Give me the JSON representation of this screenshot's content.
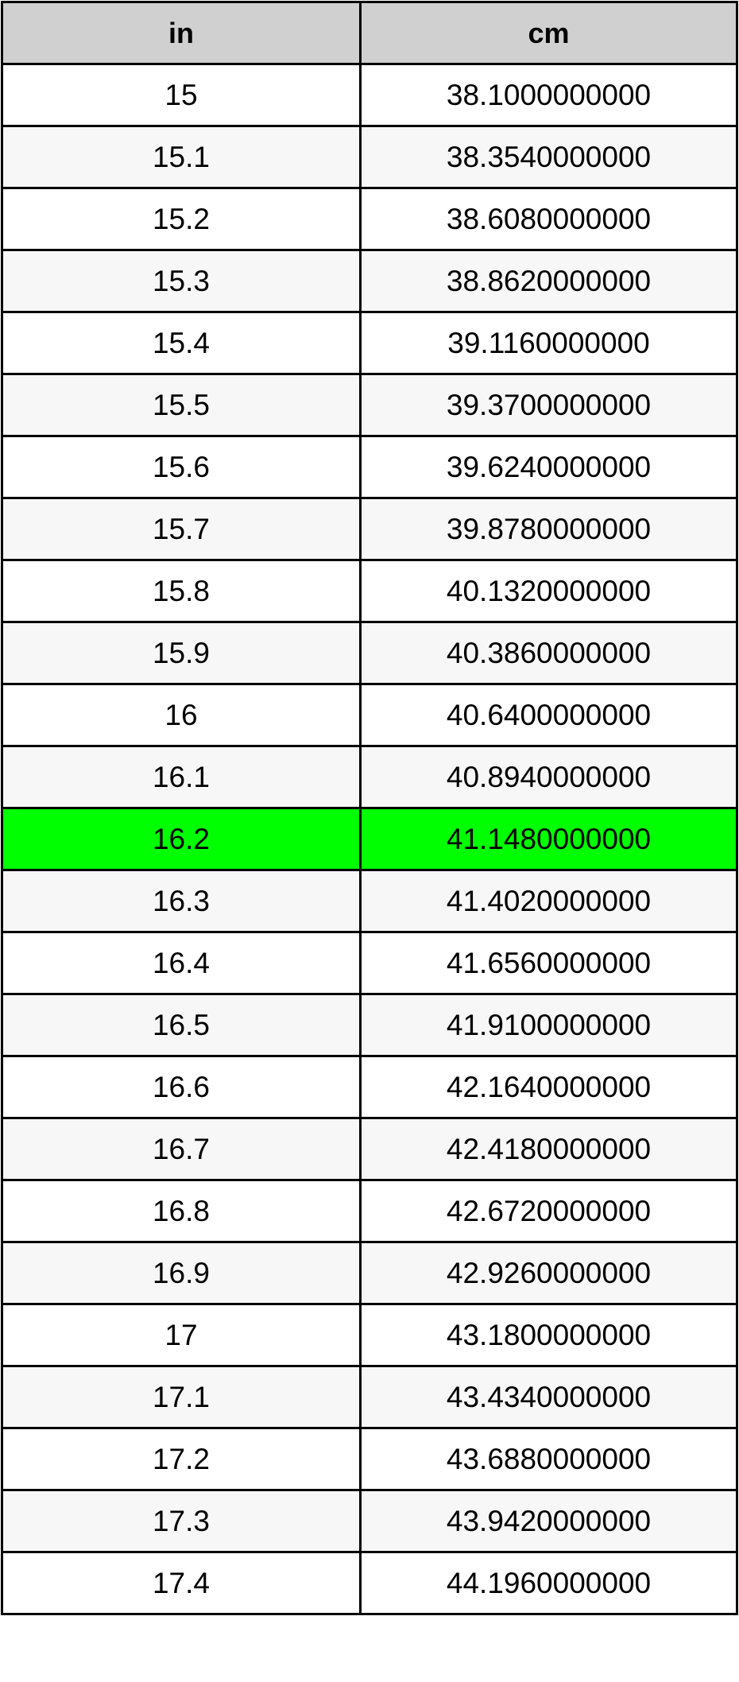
{
  "table": {
    "headers": [
      "in",
      "cm"
    ],
    "highlight_color": "#00ff00",
    "highlighted_row": "16.2",
    "rows": [
      [
        "15",
        "38.1000000000"
      ],
      [
        "15.1",
        "38.3540000000"
      ],
      [
        "15.2",
        "38.6080000000"
      ],
      [
        "15.3",
        "38.8620000000"
      ],
      [
        "15.4",
        "39.1160000000"
      ],
      [
        "15.5",
        "39.3700000000"
      ],
      [
        "15.6",
        "39.6240000000"
      ],
      [
        "15.7",
        "39.8780000000"
      ],
      [
        "15.8",
        "40.1320000000"
      ],
      [
        "15.9",
        "40.3860000000"
      ],
      [
        "16",
        "40.6400000000"
      ],
      [
        "16.1",
        "40.8940000000"
      ],
      [
        "16.2",
        "41.1480000000"
      ],
      [
        "16.3",
        "41.4020000000"
      ],
      [
        "16.4",
        "41.6560000000"
      ],
      [
        "16.5",
        "41.9100000000"
      ],
      [
        "16.6",
        "42.1640000000"
      ],
      [
        "16.7",
        "42.4180000000"
      ],
      [
        "16.8",
        "42.6720000000"
      ],
      [
        "16.9",
        "42.9260000000"
      ],
      [
        "17",
        "43.1800000000"
      ],
      [
        "17.1",
        "43.4340000000"
      ],
      [
        "17.2",
        "43.6880000000"
      ],
      [
        "17.3",
        "43.9420000000"
      ],
      [
        "17.4",
        "44.1960000000"
      ]
    ]
  }
}
